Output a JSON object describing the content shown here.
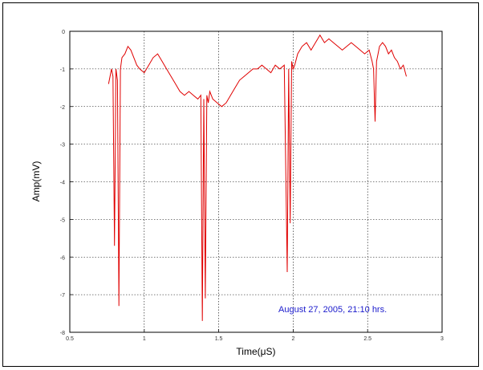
{
  "chart_data": {
    "type": "line",
    "title": "",
    "xlabel": "Time(μS)",
    "ylabel": "Amp(mV)",
    "xlim": [
      0.5,
      3
    ],
    "ylim": [
      -8,
      0
    ],
    "xticks": [
      0.5,
      1,
      1.5,
      2,
      2.5,
      3
    ],
    "xtick_labels": [
      "0.5",
      "1",
      "1.5",
      "2",
      "2.5",
      "3"
    ],
    "yticks": [
      0,
      -1,
      -2,
      -3,
      -4,
      -5,
      -6,
      -7,
      -8
    ],
    "ytick_labels": [
      "0",
      "-1",
      "-2",
      "-3",
      "-4",
      "-5",
      "-6",
      "-7",
      "-8"
    ],
    "grid": true,
    "annotation": "August 27, 2005, 21:10 hrs.",
    "series": [
      {
        "color": "#e00000",
        "x": [
          0.76,
          0.78,
          0.79,
          0.8,
          0.81,
          0.82,
          0.83,
          0.84,
          0.85,
          0.87,
          0.89,
          0.91,
          0.93,
          0.95,
          0.97,
          1.0,
          1.03,
          1.06,
          1.09,
          1.12,
          1.15,
          1.18,
          1.21,
          1.24,
          1.27,
          1.3,
          1.33,
          1.36,
          1.38,
          1.39,
          1.4,
          1.41,
          1.42,
          1.43,
          1.44,
          1.46,
          1.49,
          1.52,
          1.55,
          1.58,
          1.61,
          1.64,
          1.67,
          1.7,
          1.73,
          1.76,
          1.79,
          1.82,
          1.85,
          1.88,
          1.91,
          1.94,
          1.96,
          1.97,
          1.98,
          1.99,
          2.0,
          2.01,
          2.03,
          2.06,
          2.09,
          2.12,
          2.15,
          2.18,
          2.21,
          2.24,
          2.27,
          2.3,
          2.33,
          2.36,
          2.39,
          2.42,
          2.45,
          2.48,
          2.51,
          2.53,
          2.54,
          2.55,
          2.56,
          2.57,
          2.58,
          2.6,
          2.62,
          2.64,
          2.66,
          2.68,
          2.7,
          2.72,
          2.74,
          2.76
        ],
        "y": [
          -1.4,
          -1.0,
          -1.2,
          -5.7,
          -1.0,
          -1.3,
          -7.3,
          -1.0,
          -0.7,
          -0.6,
          -0.4,
          -0.5,
          -0.7,
          -0.9,
          -1.0,
          -1.1,
          -0.9,
          -0.7,
          -0.6,
          -0.8,
          -1.0,
          -1.2,
          -1.4,
          -1.6,
          -1.7,
          -1.6,
          -1.7,
          -1.8,
          -1.7,
          -7.7,
          -1.8,
          -7.1,
          -1.7,
          -1.9,
          -1.6,
          -1.8,
          -1.9,
          -2.0,
          -1.9,
          -1.7,
          -1.5,
          -1.3,
          -1.2,
          -1.1,
          -1.0,
          -1.0,
          -0.9,
          -1.0,
          -1.1,
          -0.9,
          -1.0,
          -0.9,
          -6.4,
          -1.0,
          -5.1,
          -0.8,
          -1.0,
          -0.9,
          -0.6,
          -0.4,
          -0.3,
          -0.5,
          -0.3,
          -0.1,
          -0.3,
          -0.2,
          -0.3,
          -0.4,
          -0.5,
          -0.4,
          -0.3,
          -0.4,
          -0.5,
          -0.6,
          -0.5,
          -0.8,
          -1.0,
          -2.4,
          -0.8,
          -0.6,
          -0.4,
          -0.3,
          -0.4,
          -0.6,
          -0.5,
          -0.7,
          -0.8,
          -1.0,
          -0.9,
          -1.2
        ]
      }
    ]
  }
}
